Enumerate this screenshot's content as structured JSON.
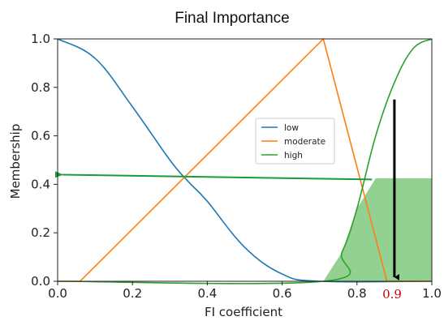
{
  "chart_data": {
    "type": "line",
    "title": "Final Importance",
    "xlabel": "FI coefficient",
    "ylabel": "Membership",
    "xlim": [
      0.0,
      1.0
    ],
    "ylim": [
      0.0,
      1.0
    ],
    "xticks": [
      0.0,
      0.2,
      0.4,
      0.6,
      0.8,
      1.0
    ],
    "xtick_labels": [
      "0.0",
      "0.2",
      "0.4",
      "0.6",
      "0.8",
      "1.0"
    ],
    "yticks": [
      0.0,
      0.2,
      0.4,
      0.6,
      0.8,
      1.0
    ],
    "ytick_labels": [
      "0.0",
      "0.2",
      "0.4",
      "0.6",
      "0.8",
      "1.0"
    ],
    "grid": false,
    "legend_position": "center-right",
    "series": [
      {
        "name": "low",
        "color": "#1f77b4",
        "kind": "z-shaped",
        "x": [
          0.0,
          0.1,
          0.2,
          0.3,
          0.35,
          0.4,
          0.5,
          0.6,
          0.7,
          1.0
        ],
        "y": [
          1.0,
          0.92,
          0.72,
          0.5,
          0.41,
          0.33,
          0.14,
          0.03,
          0.0,
          0.0
        ]
      },
      {
        "name": "moderate",
        "color": "#ff7f0e",
        "kind": "triangular",
        "x": [
          0.0,
          0.06,
          0.71,
          0.88,
          1.0
        ],
        "y": [
          0.0,
          0.0,
          1.0,
          0.0,
          0.0
        ]
      },
      {
        "name": "high",
        "color": "#2ca02c",
        "kind": "s-shaped",
        "x": [
          0.0,
          0.71,
          0.76,
          0.8,
          0.85,
          0.9,
          0.95,
          1.0
        ],
        "y": [
          0.0,
          0.0,
          0.12,
          0.3,
          0.6,
          0.82,
          0.96,
          1.0
        ]
      }
    ],
    "annotations": {
      "fill_level": 0.425,
      "fill_from_x": 0.71,
      "fill_to_x": 1.0,
      "fill_color": "#7fc97f",
      "vertical_arrow_x": 0.9,
      "vertical_arrow_top": 0.75,
      "vertical_arrow_color": "#000000",
      "horizontal_arrow_y": 0.425,
      "horizontal_arrow_from_x": 0.84,
      "horizontal_arrow_to_x": 0.0,
      "horizontal_arrow_color": "#1a9a3a",
      "marker_label": "0.9",
      "marker_label_color": "#cc0000"
    }
  }
}
